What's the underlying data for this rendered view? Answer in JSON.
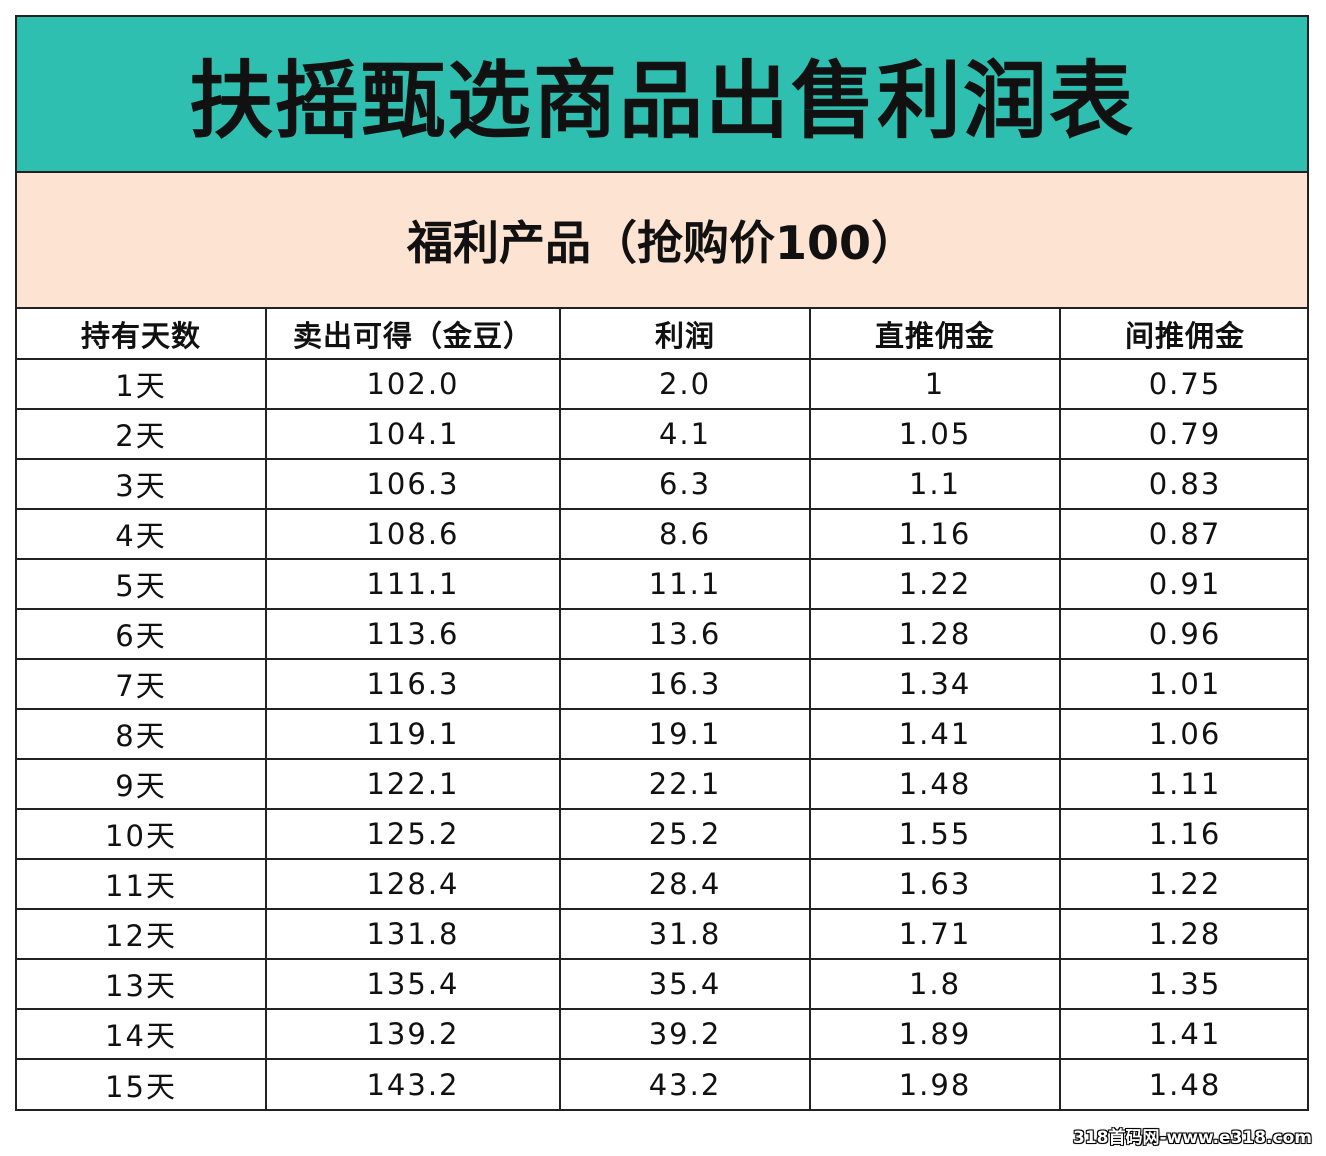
{
  "colors": {
    "title_bg": "#2fbfb0",
    "subtitle_bg": "#fde3d2",
    "border": "#222222",
    "text": "#111111"
  },
  "title": "扶摇甄选商品出售利润表",
  "subtitle": "福利产品（抢购价100）",
  "table": {
    "headers": [
      "持有天数",
      "卖出可得（金豆）",
      "利润",
      "直推佣金",
      "间推佣金"
    ],
    "rows": [
      [
        "1天",
        "102.0",
        "2.0",
        "1",
        "0.75"
      ],
      [
        "2天",
        "104.1",
        "4.1",
        "1.05",
        "0.79"
      ],
      [
        "3天",
        "106.3",
        "6.3",
        "1.1",
        "0.83"
      ],
      [
        "4天",
        "108.6",
        "8.6",
        "1.16",
        "0.87"
      ],
      [
        "5天",
        "111.1",
        "11.1",
        "1.22",
        "0.91"
      ],
      [
        "6天",
        "113.6",
        "13.6",
        "1.28",
        "0.96"
      ],
      [
        "7天",
        "116.3",
        "16.3",
        "1.34",
        "1.01"
      ],
      [
        "8天",
        "119.1",
        "19.1",
        "1.41",
        "1.06"
      ],
      [
        "9天",
        "122.1",
        "22.1",
        "1.48",
        "1.11"
      ],
      [
        "10天",
        "125.2",
        "25.2",
        "1.55",
        "1.16"
      ],
      [
        "11天",
        "128.4",
        "28.4",
        "1.63",
        "1.22"
      ],
      [
        "12天",
        "131.8",
        "31.8",
        "1.71",
        "1.28"
      ],
      [
        "13天",
        "135.4",
        "35.4",
        "1.8",
        "1.35"
      ],
      [
        "14天",
        "139.2",
        "39.2",
        "1.89",
        "1.41"
      ],
      [
        "15天",
        "143.2",
        "43.2",
        "1.98",
        "1.48"
      ]
    ]
  },
  "watermark": "318首码网-www.e318.com"
}
